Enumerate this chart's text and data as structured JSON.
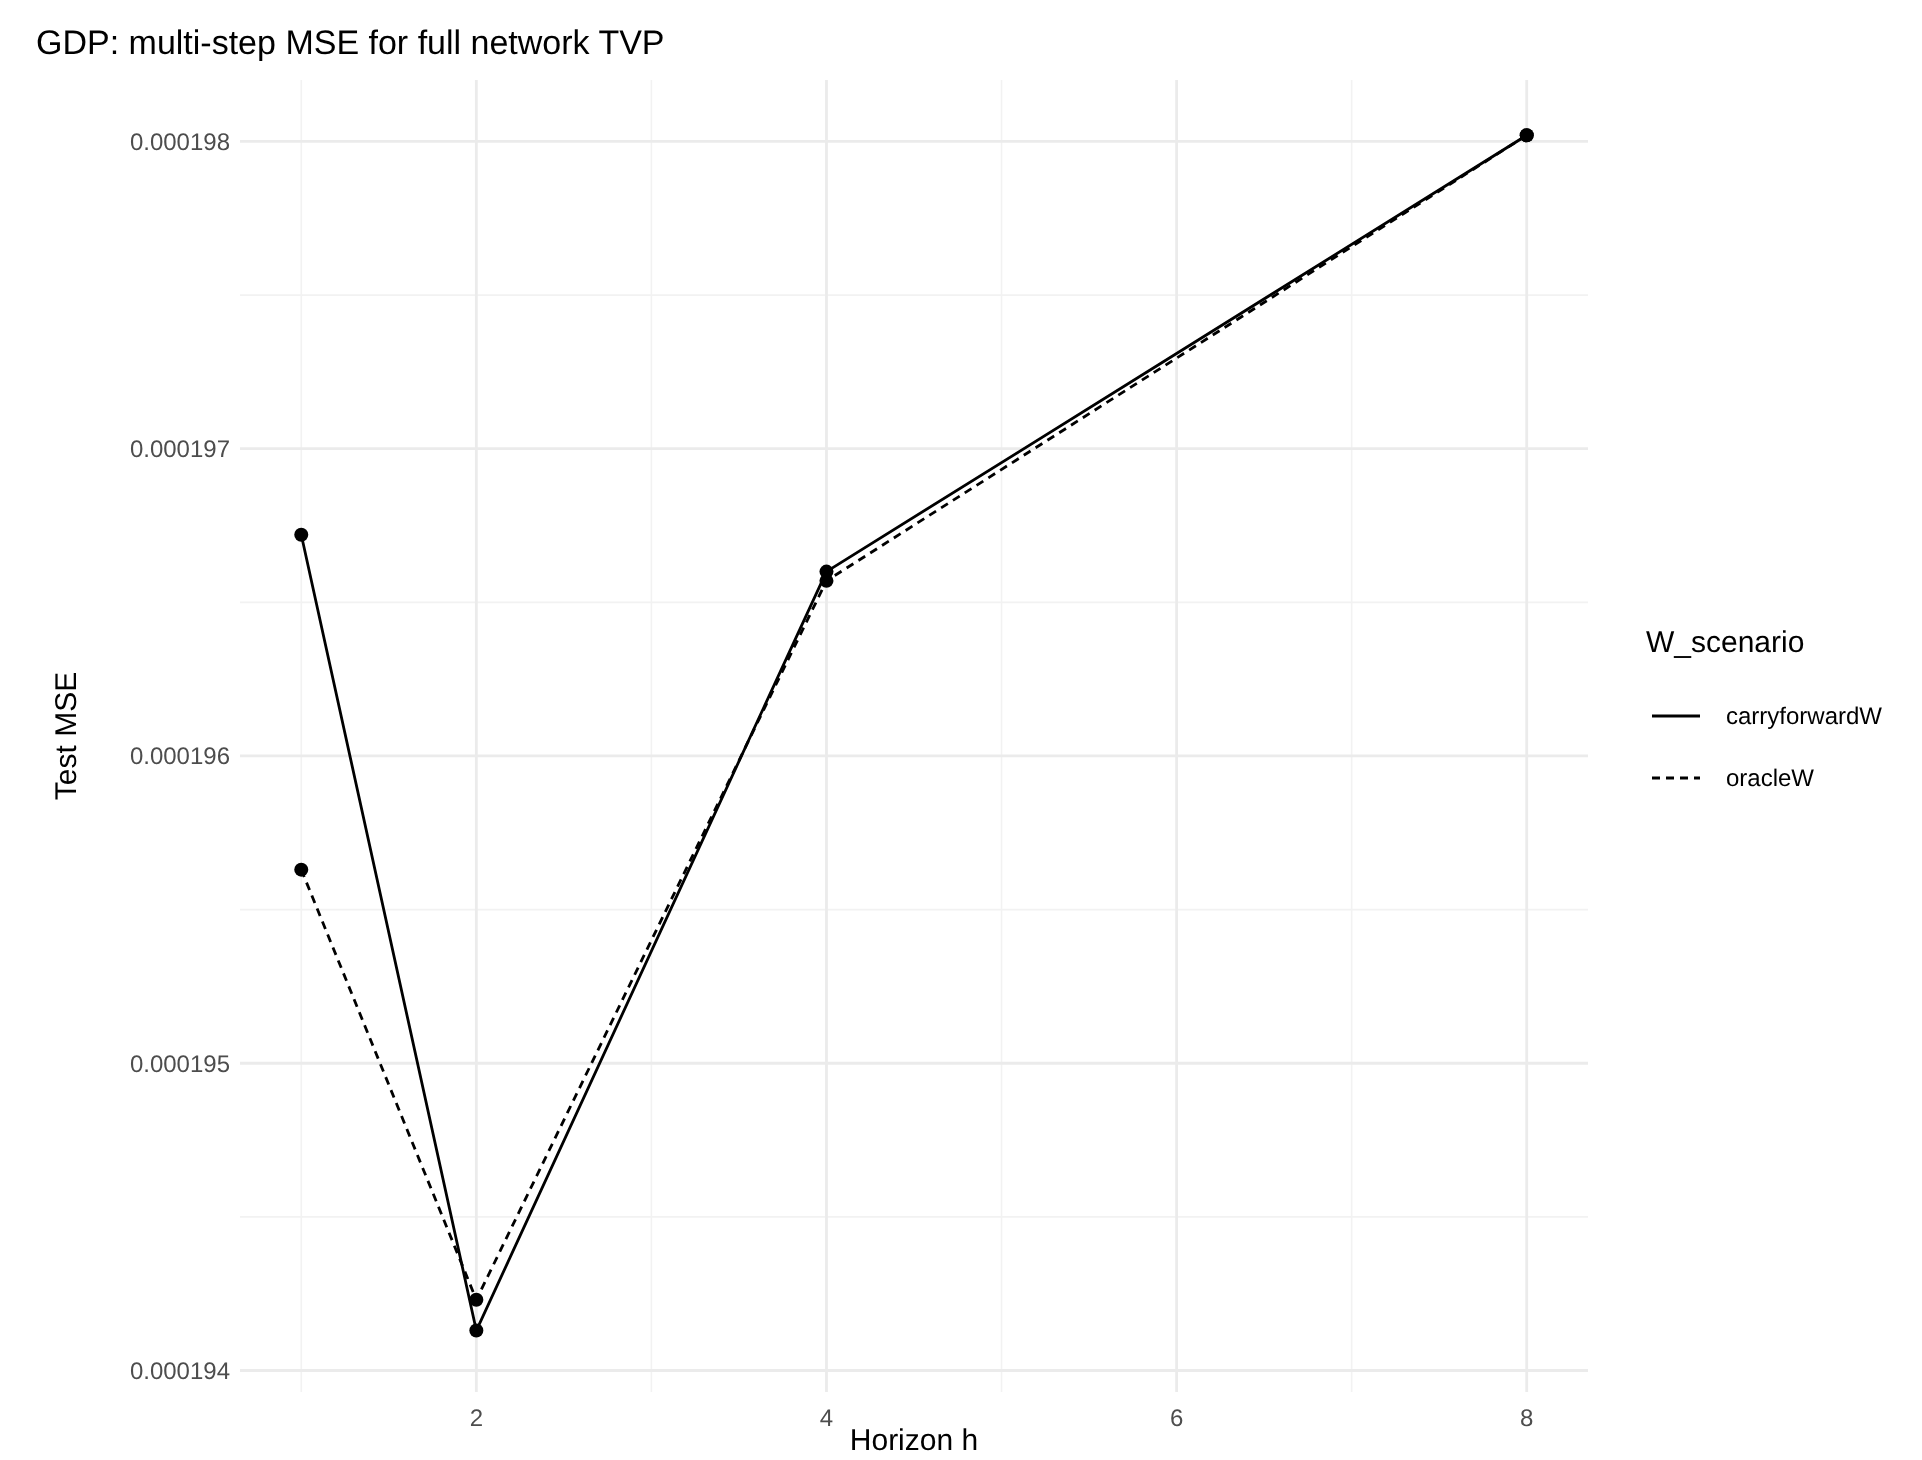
{
  "chart_data": {
    "type": "line",
    "title": "GDP: multi-step MSE for full network TVP",
    "xlabel": "Horizon h",
    "ylabel": "Test MSE",
    "legend_title": "W_scenario",
    "x": [
      1,
      2,
      4,
      8
    ],
    "series": [
      {
        "name": "carryforwardW",
        "color": "#000000",
        "line_style": "solid",
        "values": [
          0.00019672,
          0.00019413,
          0.0001966,
          0.00019802
        ]
      },
      {
        "name": "oracleW",
        "color": "#000000",
        "line_style": "dashed",
        "values": [
          0.00019563,
          0.00019423,
          0.00019657,
          0.00019802
        ]
      }
    ],
    "xlim": [
      0.65,
      8.35
    ],
    "xticks": [
      2,
      4,
      6,
      8
    ],
    "ylim": [
      0.00019393,
      0.0001982
    ],
    "yticks": [
      {
        "value": 0.000194,
        "label": "0.000194"
      },
      {
        "value": 0.000195,
        "label": "0.000195"
      },
      {
        "value": 0.000196,
        "label": "0.000196"
      },
      {
        "value": 0.000197,
        "label": "0.000197"
      },
      {
        "value": 0.000198,
        "label": "0.000198"
      }
    ],
    "grid": true,
    "legend": "right",
    "marker": "circle"
  }
}
